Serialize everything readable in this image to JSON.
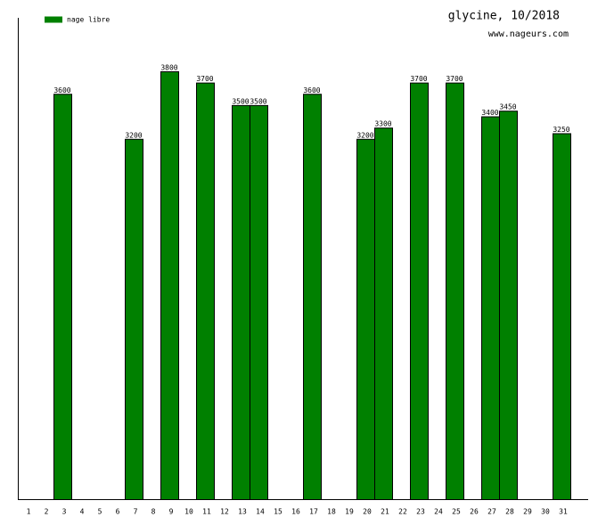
{
  "chart_data": {
    "type": "bar",
    "title": "glycine, 10/2018",
    "subtitle": "www.nageurs.com",
    "categories": [
      "1",
      "2",
      "3",
      "4",
      "5",
      "6",
      "7",
      "8",
      "9",
      "10",
      "11",
      "12",
      "13",
      "14",
      "15",
      "16",
      "17",
      "18",
      "19",
      "20",
      "21",
      "22",
      "23",
      "24",
      "25",
      "26",
      "27",
      "28",
      "29",
      "30",
      "31"
    ],
    "series": [
      {
        "name": "nage libre",
        "color": "#008000",
        "values": [
          null,
          null,
          3600,
          null,
          null,
          null,
          3200,
          null,
          3800,
          null,
          3700,
          null,
          3500,
          3500,
          null,
          null,
          3600,
          null,
          null,
          3200,
          3300,
          null,
          3700,
          null,
          3700,
          null,
          3400,
          3450,
          null,
          null,
          3250
        ]
      }
    ],
    "ylim": [
      0,
      4275
    ],
    "legend": "top-left"
  }
}
